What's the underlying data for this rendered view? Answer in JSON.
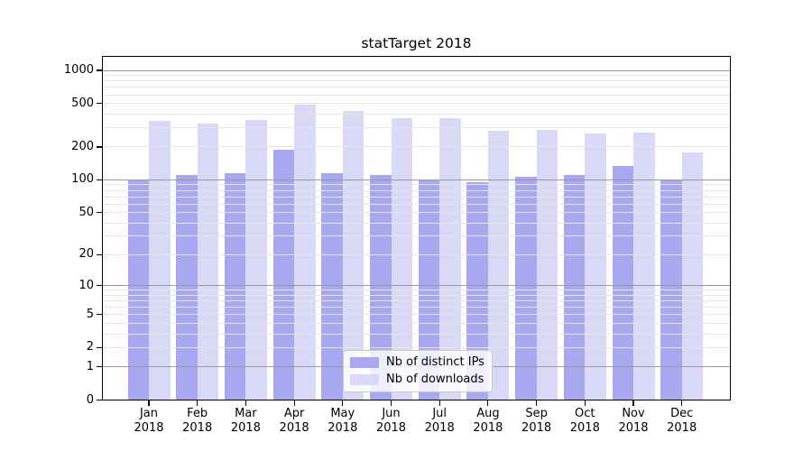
{
  "title": "statTarget 2018",
  "chart_data": {
    "type": "bar",
    "title": "statTarget 2018",
    "y_scale": "log10(1+y)",
    "ylim": [
      0,
      1370
    ],
    "y_ticks": [
      0,
      1,
      2,
      5,
      10,
      20,
      50,
      100,
      200,
      500,
      1000
    ],
    "grid": "horizontal; light minor lines + darker lines at 1,10,100,1000; drawn over bars",
    "legend_position": "lower center",
    "categories": [
      "Jan",
      "Feb",
      "Mar",
      "Apr",
      "May",
      "Jun",
      "Jul",
      "Aug",
      "Sep",
      "Oct",
      "Nov",
      "Dec"
    ],
    "x_tick_year": "2018",
    "series": [
      {
        "name": "Nb of distinct IPs",
        "color": "#a8a8f0",
        "values": [
          101,
          111,
          116,
          188,
          116,
          111,
          100,
          95,
          106,
          110,
          135,
          100
        ]
      },
      {
        "name": "Nb of downloads",
        "color": "#d9d9f7",
        "values": [
          345,
          330,
          350,
          485,
          430,
          368,
          365,
          283,
          285,
          268,
          270,
          180
        ]
      }
    ]
  },
  "colors": {
    "background": "#ffffff",
    "axis": "#000000",
    "grid_minor": "#e6e6e6",
    "grid_major": "#9a9a9a",
    "legend_border": "#cccccc"
  }
}
